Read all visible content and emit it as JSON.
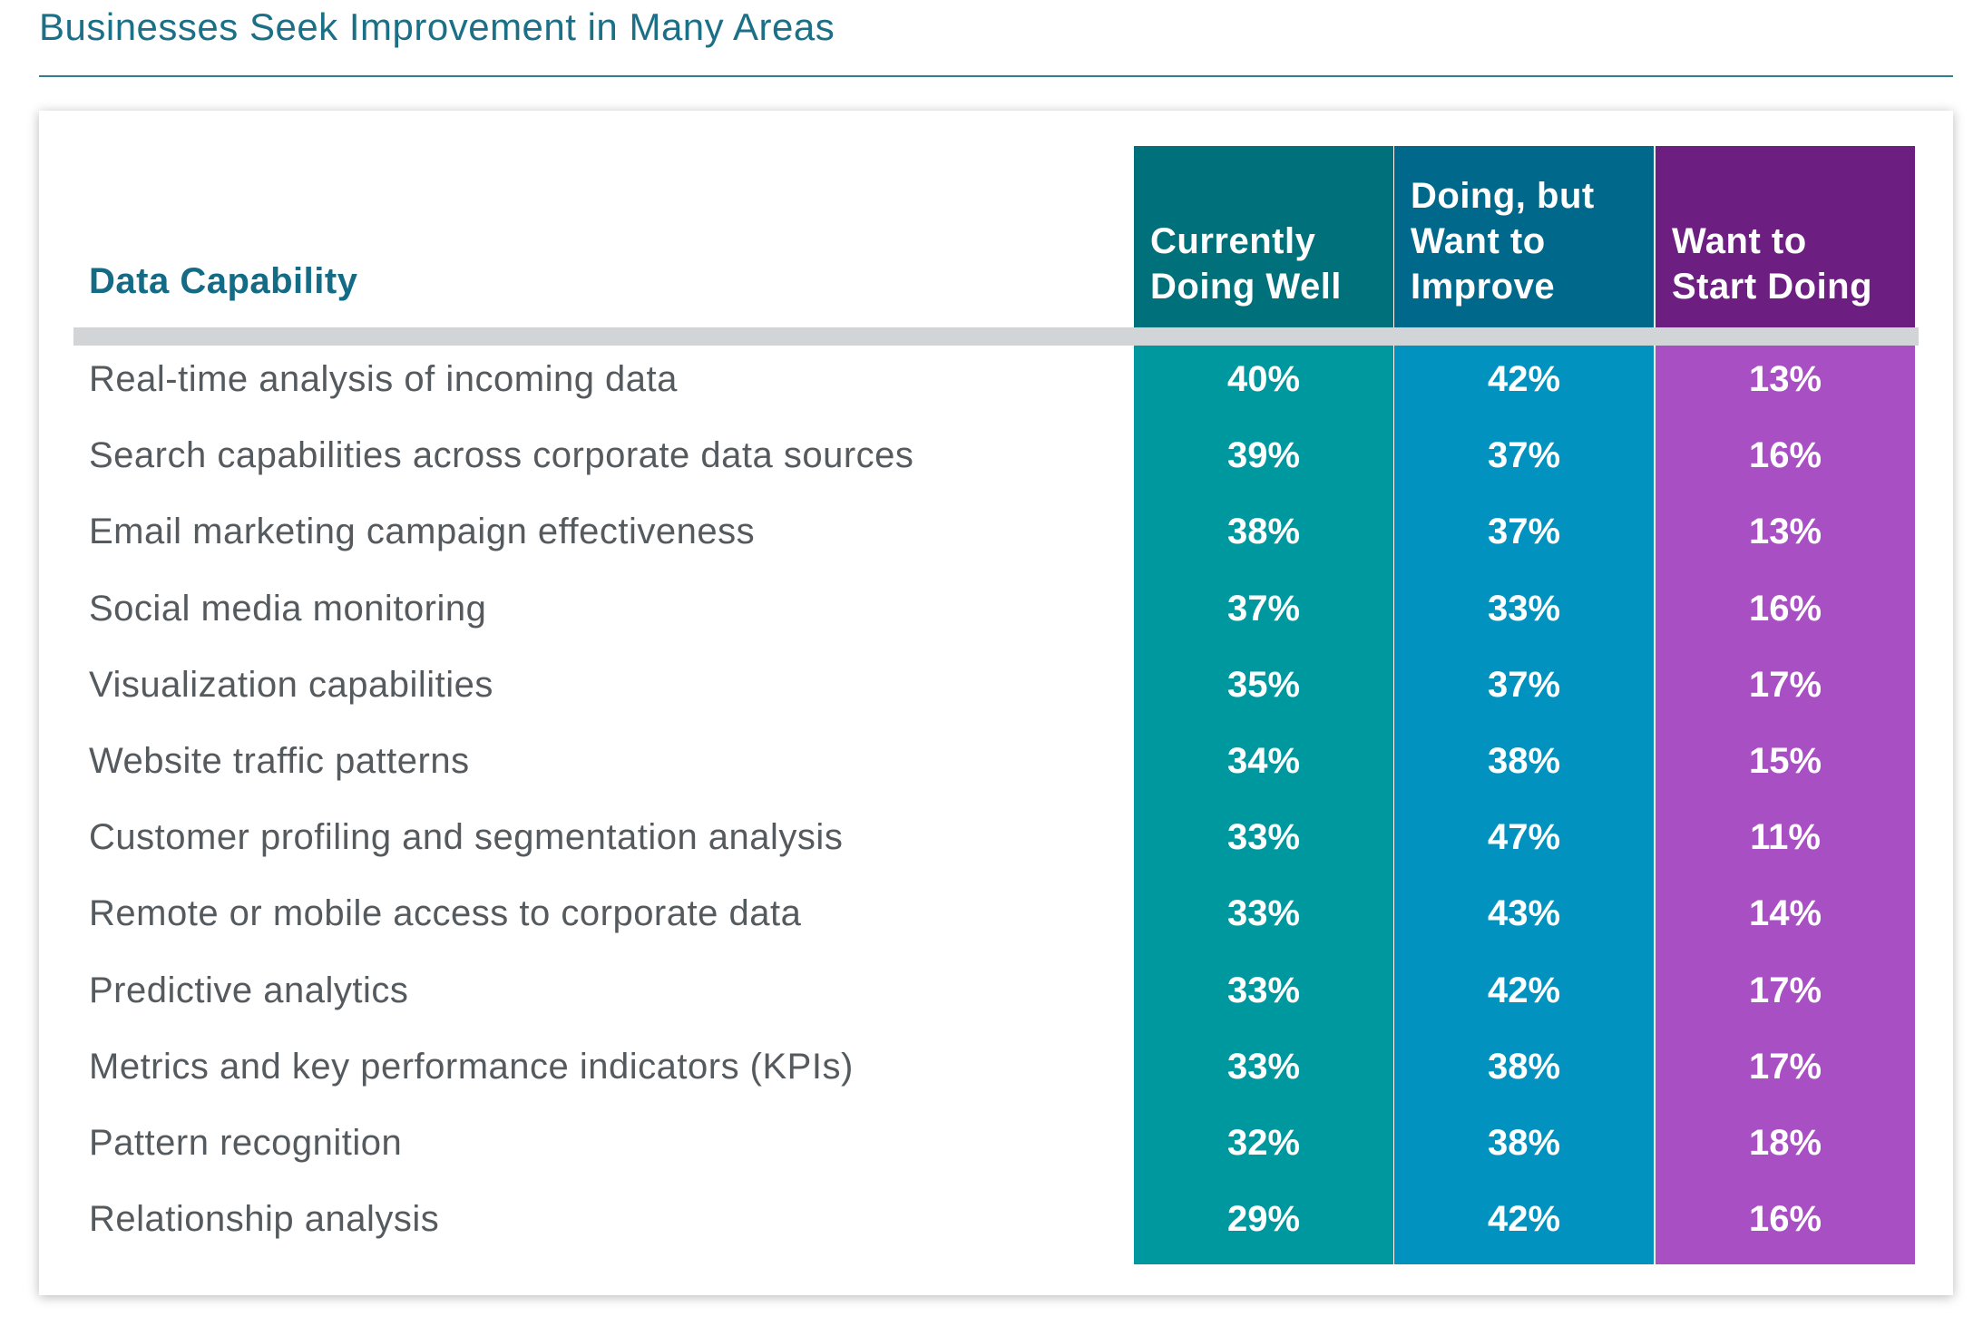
{
  "title": "Businesses Seek Improvement in Many Areas",
  "chart_data": {
    "type": "table",
    "row_header": "Data Capability",
    "columns": [
      {
        "lines": [
          "Currently",
          "Doing Well"
        ],
        "color": "#00707a",
        "body_color": "#00989f"
      },
      {
        "lines": [
          "Doing, but",
          "Want to",
          "Improve"
        ],
        "color": "#00688a",
        "body_color": "#0292bf"
      },
      {
        "lines": [
          "Want to",
          "Start Doing"
        ],
        "color": "#6c1f80",
        "body_color": "#a84fc4"
      }
    ],
    "rows": [
      {
        "label": "Real-time analysis of incoming data",
        "values": [
          "40%",
          "42%",
          "13%"
        ]
      },
      {
        "label": "Search capabilities across corporate data sources",
        "values": [
          "39%",
          "37%",
          "16%"
        ]
      },
      {
        "label": "Email marketing campaign effectiveness",
        "values": [
          "38%",
          "37%",
          "13%"
        ]
      },
      {
        "label": "Social media monitoring",
        "values": [
          "37%",
          "33%",
          "16%"
        ]
      },
      {
        "label": "Visualization capabilities",
        "values": [
          "35%",
          "37%",
          "17%"
        ]
      },
      {
        "label": "Website traffic patterns",
        "values": [
          "34%",
          "38%",
          "15%"
        ]
      },
      {
        "label": "Customer profiling and segmentation analysis",
        "values": [
          "33%",
          "47%",
          "11%"
        ]
      },
      {
        "label": "Remote or mobile access to corporate data",
        "values": [
          "33%",
          "43%",
          "14%"
        ]
      },
      {
        "label": "Predictive analytics",
        "values": [
          "33%",
          "42%",
          "17%"
        ]
      },
      {
        "label": "Metrics and key performance indicators (KPIs)",
        "values": [
          "33%",
          "38%",
          "17%"
        ]
      },
      {
        "label": "Pattern recognition",
        "values": [
          "32%",
          "38%",
          "18%"
        ]
      },
      {
        "label": "Relationship analysis",
        "values": [
          "29%",
          "42%",
          "16%"
        ]
      }
    ]
  }
}
